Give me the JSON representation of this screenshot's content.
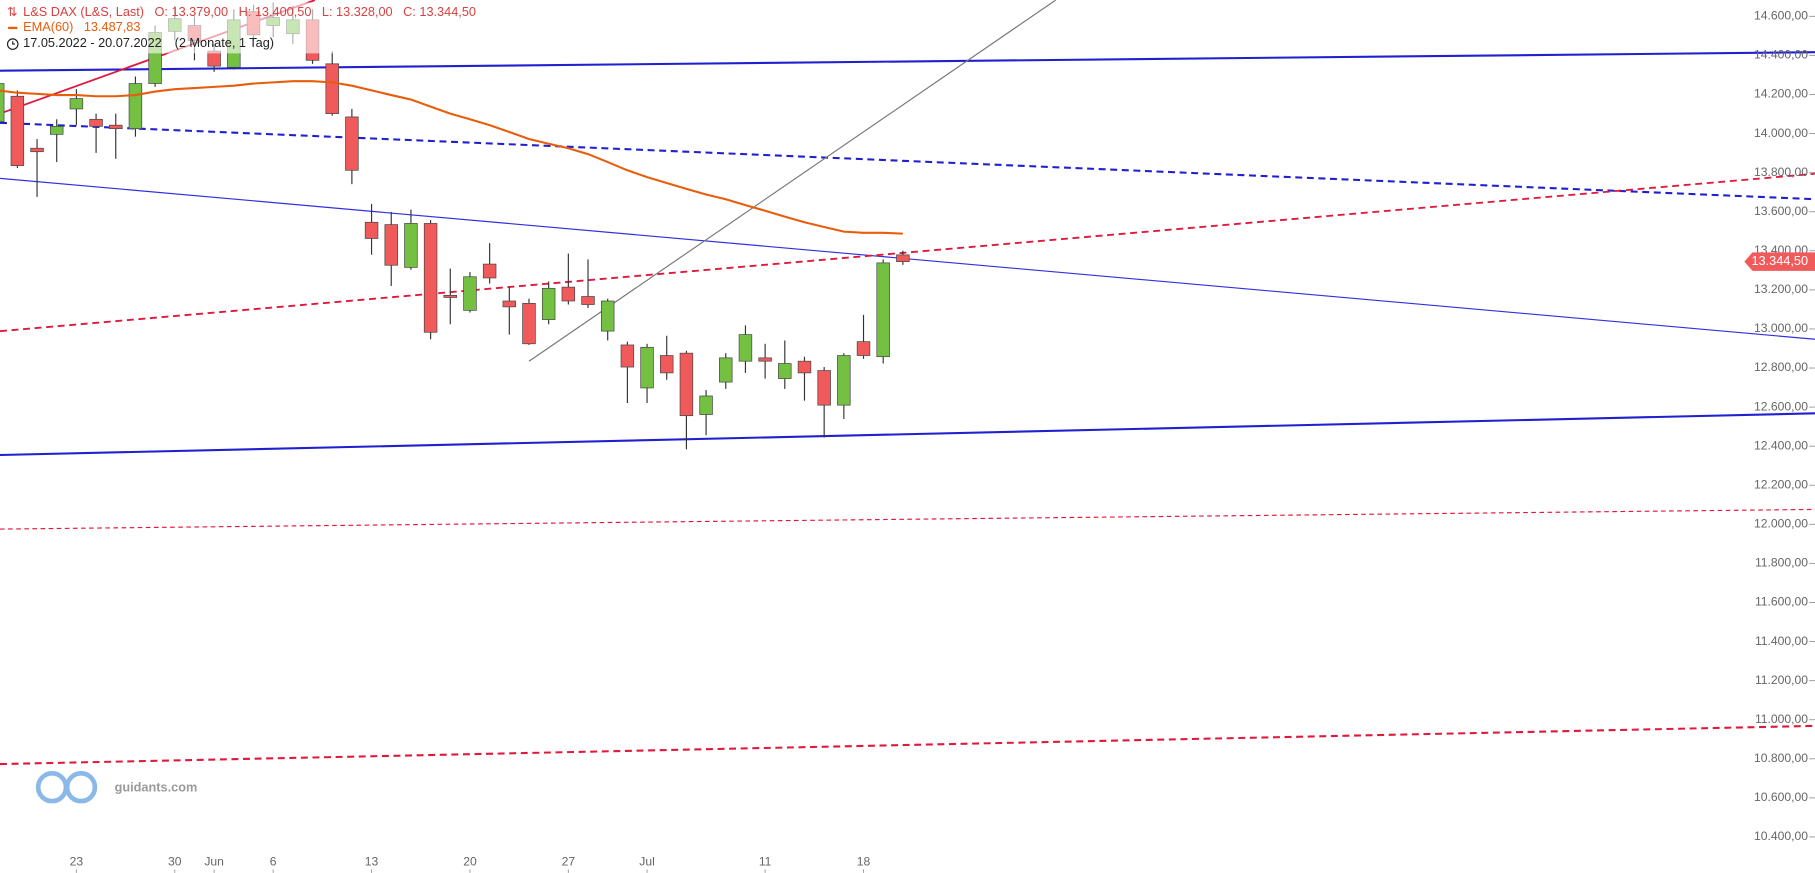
{
  "chart_data": {
    "type": "candlestick",
    "title": "L&S DAX (L&S, Last)",
    "ohlc_labels": [
      "O: 13.379,00",
      "H: 13.400,50",
      "L: 13.328,00",
      "C: 13.344,50"
    ],
    "period": "17.05.2022 - 20.07.2022",
    "period_length": "(2 Monate, 1 Tag)",
    "watermark": "guidants.com",
    "categories": [
      null,
      null,
      null,
      null,
      "23",
      null,
      null,
      null,
      null,
      "30",
      null,
      "Jun",
      null,
      null,
      "6",
      null,
      null,
      null,
      null,
      "13",
      null,
      null,
      null,
      null,
      "20",
      null,
      null,
      null,
      null,
      "27",
      null,
      null,
      null,
      "Jul",
      null,
      null,
      null,
      null,
      null,
      "11",
      null,
      null,
      null,
      null,
      "18",
      null,
      null
    ],
    "candles": {
      "open": [
        14061,
        14191,
        13925,
        13996,
        14126,
        14073,
        14043,
        14025,
        14256,
        14523,
        14553,
        14422,
        14339,
        14624,
        14553,
        14511,
        14582,
        14357,
        14085,
        13546,
        13534,
        13315,
        13540,
        13172,
        13095,
        13332,
        13143,
        13131,
        13048,
        13214,
        13166,
        12989,
        12918,
        12698,
        12864,
        12876,
        12562,
        12728,
        12835,
        12852,
        12746,
        12835,
        12787,
        12610,
        12935,
        12858,
        13379
      ],
      "high": [
        14298,
        14221,
        13972,
        14073,
        14227,
        14102,
        14102,
        14292,
        14553,
        14653,
        14600,
        14458,
        14636,
        14659,
        14671,
        14653,
        14636,
        14422,
        14126,
        13640,
        13599,
        13611,
        13557,
        13309,
        13291,
        13439,
        13214,
        13155,
        13243,
        13386,
        13356,
        13155,
        12935,
        12924,
        12965,
        12888,
        12687,
        12876,
        13018,
        12924,
        12941,
        12858,
        12805,
        12876,
        13072,
        13356,
        13400.5
      ],
      "low": [
        14031,
        13824,
        13676,
        13854,
        14043,
        13901,
        13871,
        13984,
        14239,
        14476,
        14375,
        14316,
        14328,
        14476,
        14493,
        14458,
        14357,
        14091,
        13741,
        13380,
        13220,
        13303,
        12947,
        13024,
        13084,
        13232,
        12971,
        12918,
        13024,
        13125,
        13107,
        12941,
        12621,
        12621,
        12740,
        12384,
        12456,
        12693,
        12775,
        12746,
        12693,
        12633,
        12444,
        12539,
        12847,
        12823,
        13328
      ],
      "close": [
        14256,
        13836,
        13907,
        14037,
        14179,
        14037,
        14025,
        14256,
        14517,
        14588,
        14476,
        14345,
        14582,
        14505,
        14594,
        14582,
        14375,
        14102,
        13812,
        13463,
        13326,
        13540,
        12983,
        13161,
        13267,
        13261,
        13113,
        12924,
        13208,
        13143,
        13125,
        13143,
        12805,
        12906,
        12775,
        12556,
        12657,
        12852,
        12971,
        12835,
        12823,
        12775,
        12610,
        12864,
        12864,
        13338,
        13344.5
      ],
      "up_color": "#74c043",
      "down_color": "#f05a5a",
      "last_label": "13.344,50"
    },
    "series": [
      {
        "name": "EMA(60)",
        "color": "#e85d0c",
        "last_label": "13.487,83",
        "values": [
          14221,
          14209,
          14203,
          14197,
          14197,
          14191,
          14191,
          14197,
          14215,
          14227,
          14233,
          14239,
          14245,
          14256,
          14262,
          14268,
          14268,
          14262,
          14245,
          14221,
          14197,
          14174,
          14138,
          14102,
          14073,
          14043,
          14008,
          13972,
          13948,
          13925,
          13895,
          13854,
          13812,
          13777,
          13747,
          13717,
          13688,
          13664,
          13634,
          13605,
          13575,
          13546,
          13522,
          13498,
          13492,
          13492,
          13487.83
        ]
      }
    ],
    "ylim": [
      10216,
      14683
    ],
    "yticks": [
      {
        "value": 14600,
        "label": "14.600,00"
      },
      {
        "value": 14400,
        "label": "14.400,00"
      },
      {
        "value": 14200,
        "label": "14.200,00"
      },
      {
        "value": 14000,
        "label": "14.000,00"
      },
      {
        "value": 13800,
        "label": "13.800,00"
      },
      {
        "value": 13600,
        "label": "13.600,00"
      },
      {
        "value": 13400,
        "label": "13.400,00"
      },
      {
        "value": 13200,
        "label": "13.200,00"
      },
      {
        "value": 13000,
        "label": "13.000,00"
      },
      {
        "value": 12800,
        "label": "12.800,00"
      },
      {
        "value": 12600,
        "label": "12.600,00"
      },
      {
        "value": 12400,
        "label": "12.400,00"
      },
      {
        "value": 12200,
        "label": "12.200,00"
      },
      {
        "value": 12000,
        "label": "12.000,00"
      },
      {
        "value": 11800,
        "label": "11.800,00"
      },
      {
        "value": 11600,
        "label": "11.600,00"
      },
      {
        "value": 11400,
        "label": "11.400,00"
      },
      {
        "value": 11200,
        "label": "11.200,00"
      },
      {
        "value": 11000,
        "label": "11.000,00"
      },
      {
        "value": 10800,
        "label": "10.800,00"
      },
      {
        "value": 10600,
        "label": "10.600,00"
      },
      {
        "value": 10400,
        "label": "10.400,00"
      }
    ]
  }
}
